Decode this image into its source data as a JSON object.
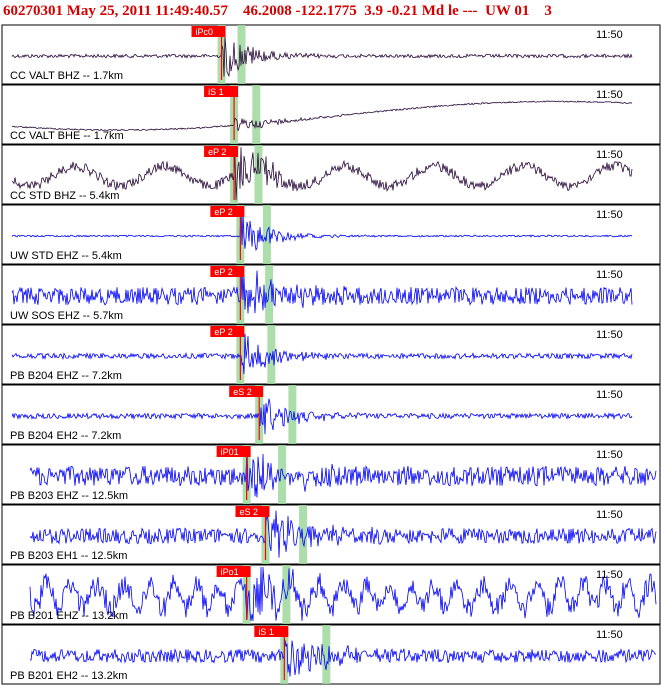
{
  "header": {
    "event_id": "60270301",
    "datetime": "May 25, 2011 11:49:40.57",
    "coords": "46.2008 -122.1775",
    "magnitude": "3.9 -0.21 Md le ---",
    "network": "UW 01",
    "count": "3"
  },
  "colors": {
    "header_text": "#d40000",
    "trace_dark": "#2a0a3a",
    "trace_blue": "#0000ff",
    "pick_red": "#ff0000",
    "window_green": "#9ed89e",
    "frame": "#000000"
  },
  "chart_data": {
    "type": "line",
    "time_label": "11:50",
    "traces": [
      {
        "label": "CC VALT BHZ -- 1.7km",
        "color": "dark",
        "pick": "iPc0",
        "style": "burst",
        "onset": 0.34,
        "noise": 0.08,
        "drift": 0.0
      },
      {
        "label": "CC VALT BHE -- 1.7km",
        "color": "dark",
        "pick": "iS 1",
        "style": "drift",
        "onset": 0.36,
        "noise": 0.03,
        "drift": 0.55
      },
      {
        "label": "CC STD BHZ -- 5.4km",
        "color": "dark",
        "pick": "eP 2",
        "style": "wave",
        "onset": 0.36,
        "noise": 0.22,
        "drift": 0.45
      },
      {
        "label": "UW STD EHZ -- 5.4km",
        "color": "blue",
        "pick": "eP 2",
        "style": "burst",
        "onset": 0.37,
        "noise": 0.04,
        "drift": 0.0
      },
      {
        "label": "UW SOS EHZ -- 5.7km",
        "color": "blue",
        "pick": "eP 2",
        "style": "noise",
        "onset": 0.37,
        "noise": 0.4,
        "drift": 0.0
      },
      {
        "label": "PB B204 EHZ -- 7.2km",
        "color": "blue",
        "pick": "eP 2",
        "style": "burst",
        "onset": 0.37,
        "noise": 0.12,
        "drift": 0.0
      },
      {
        "label": "PB B204 EH2 -- 7.2km",
        "color": "blue",
        "pick": "eS 2",
        "style": "burst",
        "onset": 0.4,
        "noise": 0.12,
        "drift": 0.0
      },
      {
        "label": "PB B203 EHZ -- 12.5km",
        "color": "blue",
        "pick": "iP01",
        "style": "noise",
        "onset": 0.38,
        "noise": 0.45,
        "drift": 0.0
      },
      {
        "label": "PB B203 EH1 -- 12.5km",
        "color": "blue",
        "pick": "eS 2",
        "style": "noise",
        "onset": 0.41,
        "noise": 0.35,
        "drift": 0.0
      },
      {
        "label": "PB B201 EHZ -- 13.2km",
        "color": "blue",
        "pick": "iPo1",
        "style": "wave2",
        "onset": 0.38,
        "noise": 0.5,
        "drift": 0.0
      },
      {
        "label": "PB B201 EH2 -- 13.2km",
        "color": "blue",
        "pick": "iS 1",
        "style": "noise",
        "onset": 0.44,
        "noise": 0.3,
        "drift": 0.0
      }
    ]
  }
}
